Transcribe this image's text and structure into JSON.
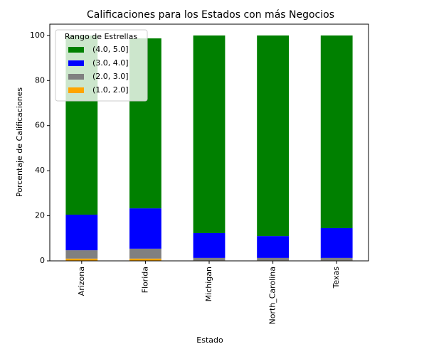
{
  "chart_data": {
    "type": "stacked_bar",
    "title": "Calificaciones para los Estados con más Negocios",
    "x_label": "Estado",
    "y_label": "Porcentaje de Calificaciones",
    "legend_title": "Rango de Estrellas",
    "legend_position": "upper left",
    "categories": [
      "Arizona",
      "Florida",
      "Michigan",
      "North_Carolina",
      "Texas"
    ],
    "series": [
      {
        "name": "(1.0, 2.0]",
        "color": "#ffa500",
        "values": [
          1,
          1,
          0.2,
          0.2,
          0.2
        ]
      },
      {
        "name": "(2.0, 3.0]",
        "color": "#808080",
        "values": [
          3.7,
          4.4,
          1.1,
          1.1,
          1.1
        ]
      },
      {
        "name": "(3.0, 4.0]",
        "color": "#0000ff",
        "values": [
          15.8,
          17.9,
          11,
          9.7,
          13.2
        ]
      },
      {
        "name": "(4.0, 5.0]",
        "color": "#008000",
        "values": [
          79.5,
          75.4,
          87.7,
          89,
          85.5
        ]
      }
    ],
    "ylim": [
      0,
      105
    ],
    "yticks": [
      0,
      20,
      40,
      60,
      80,
      100
    ]
  }
}
